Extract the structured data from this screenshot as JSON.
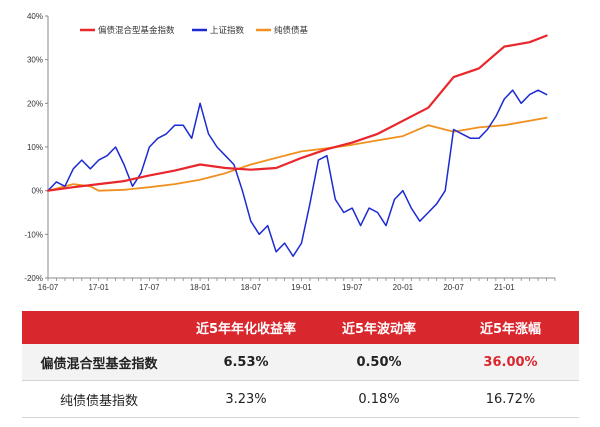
{
  "chart_data": {
    "type": "line",
    "ylim": [
      -20,
      40
    ],
    "yticks": [
      "40%",
      "30%",
      "20%",
      "10%",
      "0%",
      "-10%",
      "-20%"
    ],
    "xticks": [
      "16-07",
      "17-01",
      "17-07",
      "18-01",
      "18-07",
      "19-01",
      "19-07",
      "20-01",
      "20-07",
      "21-01"
    ],
    "series": [
      {
        "name": "偏债混合型基金指数",
        "color": "#e8262b",
        "x": [
          "16-07",
          "16-10",
          "17-01",
          "17-04",
          "17-07",
          "17-10",
          "18-01",
          "18-04",
          "18-07",
          "18-10",
          "19-01",
          "19-04",
          "19-07",
          "19-10",
          "20-01",
          "20-04",
          "20-07",
          "20-10",
          "21-01",
          "21-04",
          "21-06"
        ],
        "values": [
          0,
          0.8,
          1.5,
          2.2,
          3.5,
          4.6,
          6,
          5.2,
          4.8,
          5.2,
          7.5,
          9.5,
          11,
          13,
          16,
          19,
          26,
          28,
          33,
          34,
          35.5
        ]
      },
      {
        "name": "上证指数",
        "color": "#1b2bd1",
        "x": [
          "16-07",
          "16-08",
          "16-09",
          "16-10",
          "16-11",
          "16-12",
          "17-01",
          "17-02",
          "17-03",
          "17-04",
          "17-05",
          "17-06",
          "17-07",
          "17-08",
          "17-09",
          "17-10",
          "17-11",
          "17-12",
          "18-01",
          "18-02",
          "18-03",
          "18-04",
          "18-05",
          "18-06",
          "18-07",
          "18-08",
          "18-09",
          "18-10",
          "18-11",
          "18-12",
          "19-01",
          "19-02",
          "19-03",
          "19-04",
          "19-05",
          "19-06",
          "19-07",
          "19-08",
          "19-09",
          "19-10",
          "19-11",
          "19-12",
          "20-01",
          "20-02",
          "20-03",
          "20-04",
          "20-05",
          "20-06",
          "20-07",
          "20-08",
          "20-09",
          "20-10",
          "20-11",
          "20-12",
          "21-01",
          "21-02",
          "21-03",
          "21-04",
          "21-05",
          "21-06"
        ],
        "values": [
          0,
          2,
          1,
          5,
          7,
          5,
          7,
          8,
          10,
          6,
          1,
          4,
          10,
          12,
          13,
          15,
          15,
          12,
          20,
          13,
          10,
          8,
          6,
          0,
          -7,
          -10,
          -8,
          -14,
          -12,
          -15,
          -12,
          -3,
          7,
          8,
          -2,
          -5,
          -4,
          -8,
          -4,
          -5,
          -8,
          -2,
          0,
          -4,
          -7,
          -5,
          -3,
          0,
          14,
          13,
          12,
          12,
          14,
          17,
          21,
          23,
          20,
          22,
          23,
          22
        ]
      },
      {
        "name": "纯债债基",
        "color": "#f0901f",
        "x": [
          "16-07",
          "16-10",
          "16-12",
          "17-01",
          "17-04",
          "17-07",
          "17-10",
          "18-01",
          "18-04",
          "18-07",
          "18-10",
          "19-01",
          "19-04",
          "19-07",
          "19-10",
          "20-01",
          "20-04",
          "20-05",
          "20-07",
          "20-10",
          "21-01",
          "21-04",
          "21-06"
        ],
        "values": [
          0,
          1.5,
          1,
          0,
          0.2,
          0.8,
          1.5,
          2.5,
          4,
          6,
          7.5,
          9,
          9.7,
          10.5,
          11.5,
          12.5,
          15,
          14.5,
          13.5,
          14.5,
          15,
          16,
          16.7
        ]
      }
    ]
  },
  "table": {
    "headers": [
      "",
      "近5年年化收益率",
      "近5年波动率",
      "近5年涨幅"
    ],
    "rows": [
      {
        "name": "偏债混合型基金指数",
        "annual_return": "6.53%",
        "volatility": "0.50%",
        "total_gain": "36.00%"
      },
      {
        "name": "纯债债基指数",
        "annual_return": "3.23%",
        "volatility": "0.18%",
        "total_gain": "16.72%"
      }
    ],
    "highlight_color": "#d9272e"
  }
}
